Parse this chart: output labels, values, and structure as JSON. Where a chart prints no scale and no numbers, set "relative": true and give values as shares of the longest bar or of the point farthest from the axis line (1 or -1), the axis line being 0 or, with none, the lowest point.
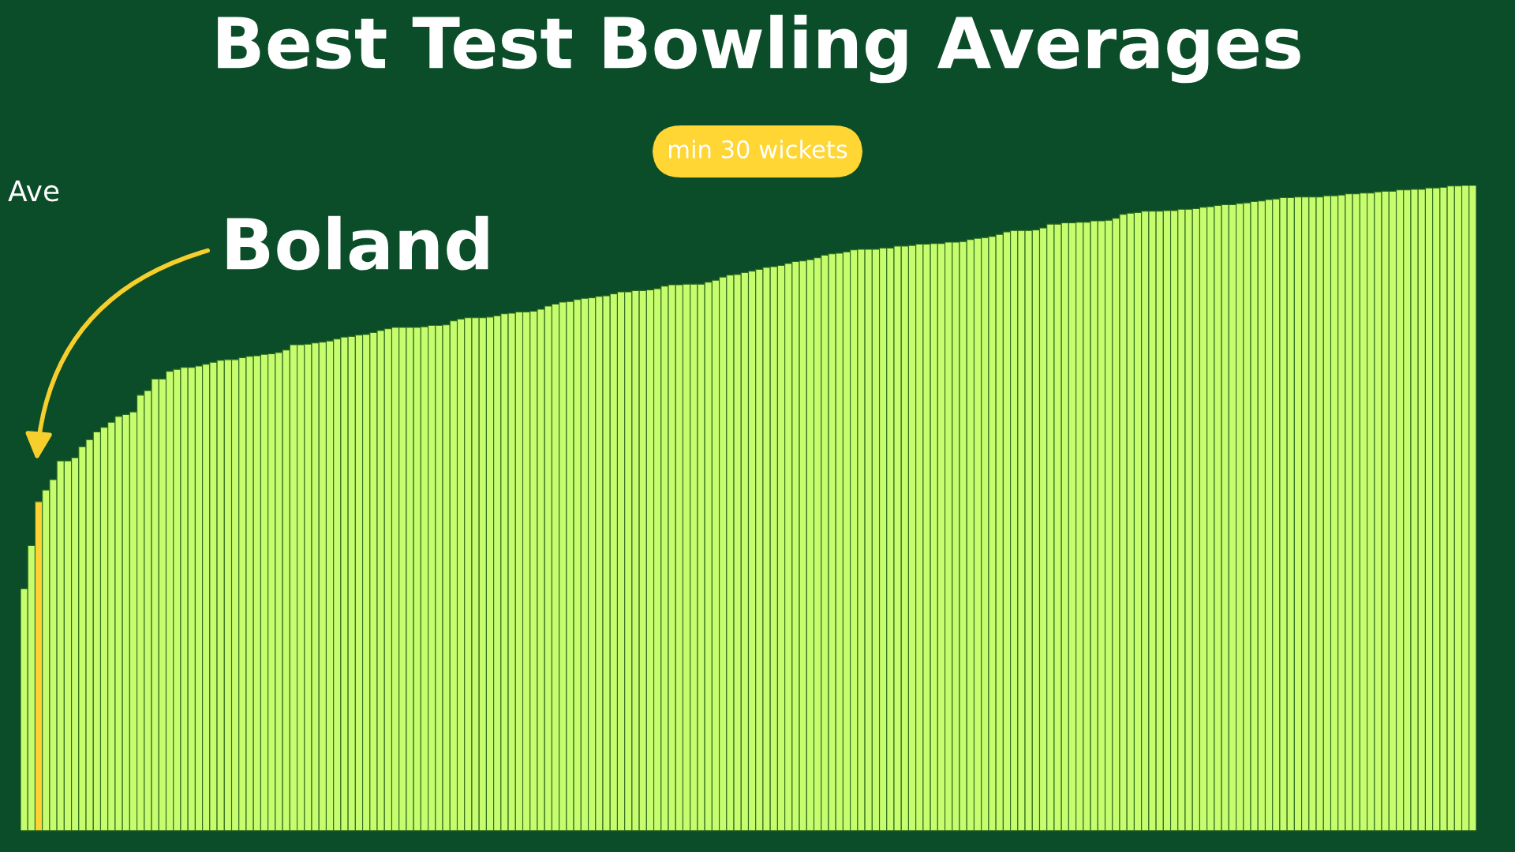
{
  "chart_data": {
    "type": "bar",
    "title": "Best Test Bowling Averages",
    "subtitle": "min 30 wickets",
    "ylabel": "Ave",
    "relative": true,
    "categories": [
      null,
      null,
      null,
      null,
      null,
      null,
      null,
      null,
      null,
      null,
      null,
      null,
      null,
      null,
      null,
      null,
      null,
      null,
      null,
      null,
      null,
      null,
      null,
      null,
      null,
      null,
      null,
      null,
      null,
      null,
      null,
      null,
      null,
      null,
      null,
      null,
      null,
      null,
      null,
      null,
      null,
      null,
      null,
      null,
      null,
      null,
      null,
      null,
      null,
      null,
      null,
      null,
      null,
      null,
      null,
      null,
      null,
      null,
      null,
      null,
      null,
      null,
      null,
      null,
      null,
      null,
      null,
      null,
      null,
      null,
      null,
      null,
      null,
      null,
      null,
      null,
      null,
      null,
      null,
      null,
      null,
      null,
      null,
      null,
      null,
      null,
      null,
      null,
      null,
      null,
      null,
      null,
      null,
      null,
      null,
      null,
      null,
      null,
      null,
      null,
      null,
      null,
      null,
      null,
      null,
      null,
      null,
      null,
      null,
      null,
      null,
      null,
      null,
      null,
      null,
      null,
      null,
      null,
      null,
      null,
      null,
      null,
      null,
      null,
      null,
      null,
      null,
      null,
      null,
      null,
      null,
      null,
      null,
      null,
      null,
      null,
      null,
      null,
      null,
      null,
      null,
      null,
      null,
      null,
      null,
      null,
      null,
      null,
      null,
      null,
      null,
      null,
      null,
      null,
      null,
      null,
      null,
      null,
      null,
      null,
      null,
      null,
      null,
      null,
      null,
      null,
      null,
      null,
      null,
      null,
      null,
      null,
      null,
      null,
      null,
      null,
      null,
      null,
      null,
      null,
      null,
      null,
      null,
      null,
      null,
      null,
      null,
      null,
      null,
      null,
      null,
      null,
      null,
      null,
      null,
      null,
      null,
      null,
      null,
      null
    ],
    "values": [
      0.375,
      0.442,
      0.51,
      0.528,
      0.544,
      0.573,
      0.573,
      0.578,
      0.595,
      0.606,
      0.618,
      0.625,
      0.633,
      0.642,
      0.645,
      0.649,
      0.675,
      0.682,
      0.7,
      0.7,
      0.712,
      0.715,
      0.718,
      0.718,
      0.72,
      0.723,
      0.726,
      0.729,
      0.73,
      0.73,
      0.733,
      0.735,
      0.736,
      0.738,
      0.739,
      0.741,
      0.745,
      0.753,
      0.753,
      0.754,
      0.756,
      0.757,
      0.759,
      0.762,
      0.765,
      0.766,
      0.768,
      0.769,
      0.772,
      0.775,
      0.778,
      0.78,
      0.78,
      0.78,
      0.78,
      0.781,
      0.783,
      0.783,
      0.784,
      0.79,
      0.793,
      0.795,
      0.795,
      0.795,
      0.796,
      0.798,
      0.801,
      0.802,
      0.804,
      0.804,
      0.805,
      0.808,
      0.813,
      0.816,
      0.819,
      0.82,
      0.823,
      0.825,
      0.826,
      0.828,
      0.829,
      0.832,
      0.835,
      0.835,
      0.837,
      0.837,
      0.838,
      0.84,
      0.844,
      0.846,
      0.846,
      0.847,
      0.847,
      0.847,
      0.85,
      0.853,
      0.858,
      0.861,
      0.862,
      0.865,
      0.867,
      0.87,
      0.873,
      0.874,
      0.876,
      0.879,
      0.882,
      0.883,
      0.885,
      0.888,
      0.892,
      0.894,
      0.895,
      0.897,
      0.9,
      0.901,
      0.901,
      0.901,
      0.903,
      0.903,
      0.906,
      0.906,
      0.907,
      0.909,
      0.909,
      0.91,
      0.91,
      0.912,
      0.912,
      0.913,
      0.916,
      0.918,
      0.919,
      0.921,
      0.924,
      0.928,
      0.93,
      0.93,
      0.93,
      0.931,
      0.934,
      0.94,
      0.94,
      0.942,
      0.942,
      0.943,
      0.943,
      0.945,
      0.945,
      0.946,
      0.949,
      0.955,
      0.957,
      0.958,
      0.96,
      0.96,
      0.96,
      0.961,
      0.961,
      0.963,
      0.963,
      0.964,
      0.966,
      0.967,
      0.969,
      0.97,
      0.97,
      0.972,
      0.973,
      0.975,
      0.976,
      0.978,
      0.979,
      0.981,
      0.981,
      0.982,
      0.982,
      0.982,
      0.982,
      0.984,
      0.984,
      0.985,
      0.987,
      0.987,
      0.988,
      0.988,
      0.99,
      0.991,
      0.991,
      0.993,
      0.993,
      0.994,
      0.994,
      0.996,
      0.996,
      0.997,
      0.999,
      0.999,
      1,
      1
    ],
    "colors": [
      "#c6fc6e",
      "#c6fc6e",
      "#ffd233",
      "#c6fc6e",
      "#c6fc6e",
      "#c6fc6e",
      "#c6fc6e",
      "#c6fc6e",
      "#c6fc6e",
      "#c6fc6e",
      "#c6fc6e",
      "#c6fc6e",
      "#c6fc6e",
      "#c6fc6e",
      "#c6fc6e",
      "#c6fc6e",
      "#c6fc6e",
      "#c6fc6e",
      "#c6fc6e",
      "#c6fc6e",
      "#c6fc6e",
      "#c6fc6e",
      "#c6fc6e",
      "#c6fc6e",
      "#c6fc6e",
      "#c6fc6e",
      "#c6fc6e",
      "#c6fc6e",
      "#c6fc6e",
      "#c6fc6e",
      "#c6fc6e",
      "#c6fc6e",
      "#c6fc6e",
      "#c6fc6e",
      "#c6fc6e",
      "#c6fc6e",
      "#c6fc6e",
      "#c6fc6e",
      "#c6fc6e",
      "#c6fc6e",
      "#c6fc6e",
      "#c6fc6e",
      "#c6fc6e",
      "#c6fc6e",
      "#c6fc6e",
      "#c6fc6e",
      "#c6fc6e",
      "#c6fc6e",
      "#c6fc6e",
      "#c6fc6e",
      "#c6fc6e",
      "#c6fc6e",
      "#c6fc6e",
      "#c6fc6e",
      "#c6fc6e",
      "#c6fc6e",
      "#c6fc6e",
      "#c6fc6e",
      "#c6fc6e",
      "#c6fc6e",
      "#c6fc6e",
      "#c6fc6e",
      "#c6fc6e",
      "#c6fc6e",
      "#c6fc6e",
      "#c6fc6e",
      "#c6fc6e",
      "#c6fc6e",
      "#c6fc6e",
      "#c6fc6e",
      "#c6fc6e",
      "#c6fc6e",
      "#c6fc6e",
      "#c6fc6e",
      "#c6fc6e",
      "#c6fc6e",
      "#c6fc6e",
      "#c6fc6e",
      "#c6fc6e",
      "#c6fc6e",
      "#c6fc6e",
      "#c6fc6e",
      "#c6fc6e",
      "#c6fc6e",
      "#c6fc6e",
      "#c6fc6e",
      "#c6fc6e",
      "#c6fc6e",
      "#c6fc6e",
      "#c6fc6e",
      "#c6fc6e",
      "#c6fc6e",
      "#c6fc6e",
      "#c6fc6e",
      "#c6fc6e",
      "#c6fc6e",
      "#c6fc6e",
      "#c6fc6e",
      "#c6fc6e",
      "#c6fc6e",
      "#c6fc6e",
      "#c6fc6e",
      "#c6fc6e",
      "#c6fc6e",
      "#c6fc6e",
      "#c6fc6e",
      "#c6fc6e",
      "#c6fc6e",
      "#c6fc6e",
      "#c6fc6e",
      "#c6fc6e",
      "#c6fc6e",
      "#c6fc6e",
      "#c6fc6e",
      "#c6fc6e",
      "#c6fc6e",
      "#c6fc6e",
      "#c6fc6e",
      "#c6fc6e",
      "#c6fc6e",
      "#c6fc6e",
      "#c6fc6e",
      "#c6fc6e",
      "#c6fc6e",
      "#c6fc6e",
      "#c6fc6e",
      "#c6fc6e",
      "#c6fc6e",
      "#c6fc6e",
      "#c6fc6e",
      "#c6fc6e",
      "#c6fc6e",
      "#c6fc6e",
      "#c6fc6e",
      "#c6fc6e",
      "#c6fc6e",
      "#c6fc6e",
      "#c6fc6e",
      "#c6fc6e",
      "#c6fc6e",
      "#c6fc6e",
      "#c6fc6e",
      "#c6fc6e",
      "#c6fc6e",
      "#c6fc6e",
      "#c6fc6e",
      "#c6fc6e",
      "#c6fc6e",
      "#c6fc6e",
      "#c6fc6e",
      "#c6fc6e",
      "#c6fc6e",
      "#c6fc6e",
      "#c6fc6e",
      "#c6fc6e",
      "#c6fc6e",
      "#c6fc6e",
      "#c6fc6e",
      "#c6fc6e",
      "#c6fc6e",
      "#c6fc6e",
      "#c6fc6e",
      "#c6fc6e",
      "#c6fc6e",
      "#c6fc6e",
      "#c6fc6e",
      "#c6fc6e",
      "#c6fc6e",
      "#c6fc6e",
      "#c6fc6e",
      "#c6fc6e",
      "#c6fc6e",
      "#c6fc6e",
      "#c6fc6e",
      "#c6fc6e",
      "#c6fc6e",
      "#c6fc6e",
      "#c6fc6e",
      "#c6fc6e",
      "#c6fc6e",
      "#c6fc6e",
      "#c6fc6e",
      "#c6fc6e",
      "#c6fc6e",
      "#c6fc6e",
      "#c6fc6e",
      "#c6fc6e",
      "#c6fc6e",
      "#c6fc6e",
      "#c6fc6e",
      "#c6fc6e",
      "#c6fc6e",
      "#c6fc6e",
      "#c6fc6e",
      "#c6fc6e",
      "#c6fc6e",
      "#c6fc6e",
      "#c6fc6e",
      "#c6fc6e",
      "#c6fc6e"
    ],
    "annotations": [
      "Boland"
    ]
  }
}
